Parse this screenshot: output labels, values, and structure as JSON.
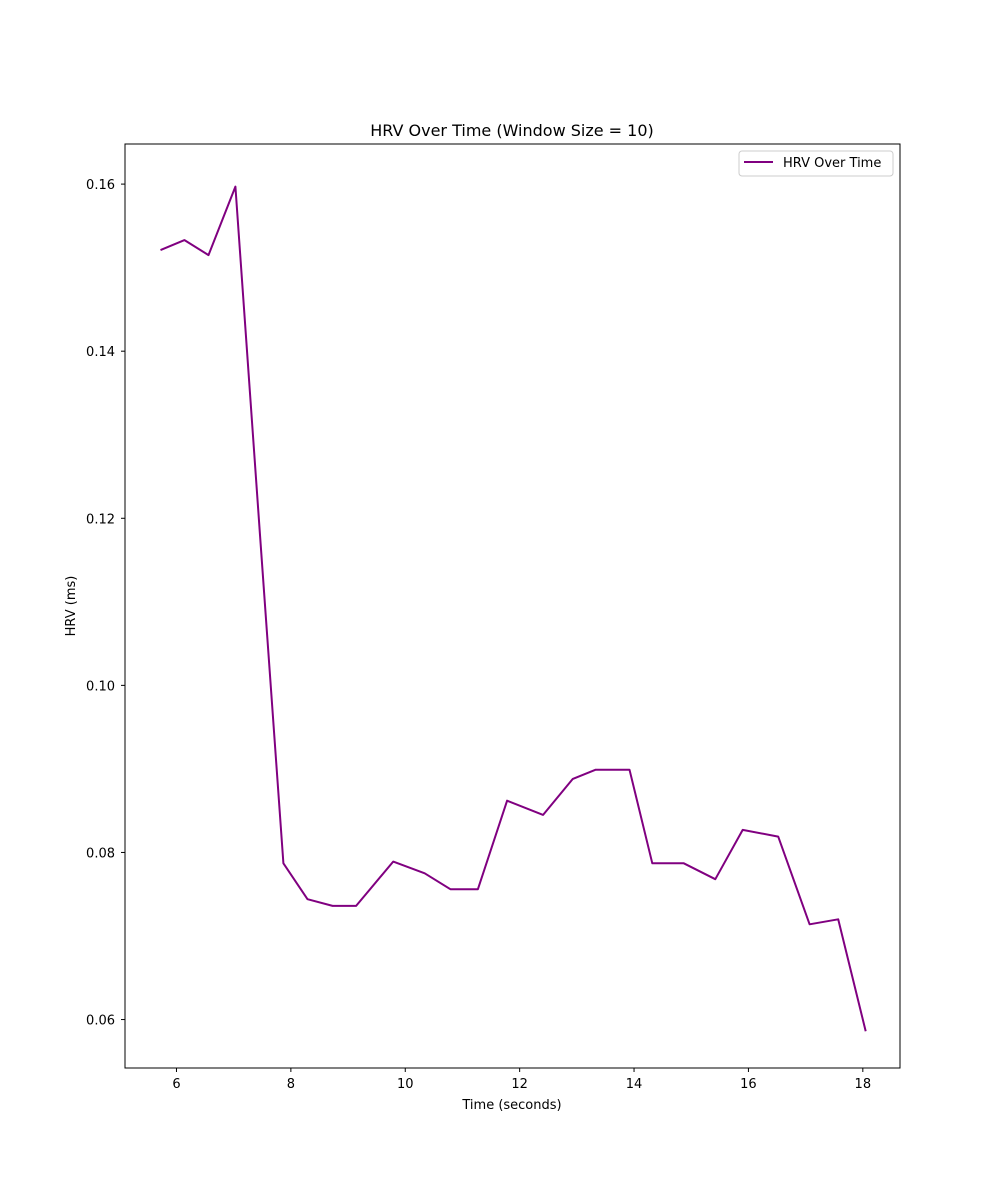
{
  "chart_data": {
    "type": "line",
    "title": "HRV Over Time (Window Size = 10)",
    "xlabel": "Time (seconds)",
    "ylabel": "HRV (ms)",
    "xlim": [
      5.1,
      18.65
    ],
    "ylim": [
      0.0542,
      0.1648
    ],
    "xticks": [
      6,
      8,
      10,
      12,
      14,
      16,
      18
    ],
    "xtick_labels": [
      "6",
      "8",
      "10",
      "12",
      "14",
      "16",
      "18"
    ],
    "yticks": [
      0.06,
      0.08,
      0.1,
      0.12,
      0.14,
      0.16
    ],
    "ytick_labels": [
      "0.06",
      "0.08",
      "0.10",
      "0.12",
      "0.14",
      "0.16"
    ],
    "grid": false,
    "legend": {
      "position": "top-right",
      "entries": [
        "HRV Over Time"
      ]
    },
    "series": [
      {
        "name": "HRV Over Time",
        "color": "#800080",
        "x": [
          5.72,
          6.14,
          6.56,
          7.03,
          7.46,
          7.87,
          8.29,
          8.73,
          9.14,
          9.79,
          10.34,
          10.79,
          11.27,
          11.78,
          12.41,
          12.93,
          13.33,
          13.92,
          14.32,
          14.87,
          15.42,
          15.9,
          16.52,
          17.07,
          17.57,
          18.05
        ],
        "y": [
          0.1521,
          0.1533,
          0.1515,
          0.1597,
          0.118,
          0.0787,
          0.0744,
          0.0736,
          0.0736,
          0.0789,
          0.0775,
          0.0756,
          0.0756,
          0.0862,
          0.0845,
          0.0888,
          0.0899,
          0.0899,
          0.0787,
          0.0787,
          0.0768,
          0.0827,
          0.0819,
          0.0714,
          0.072,
          0.0586
        ]
      }
    ]
  }
}
